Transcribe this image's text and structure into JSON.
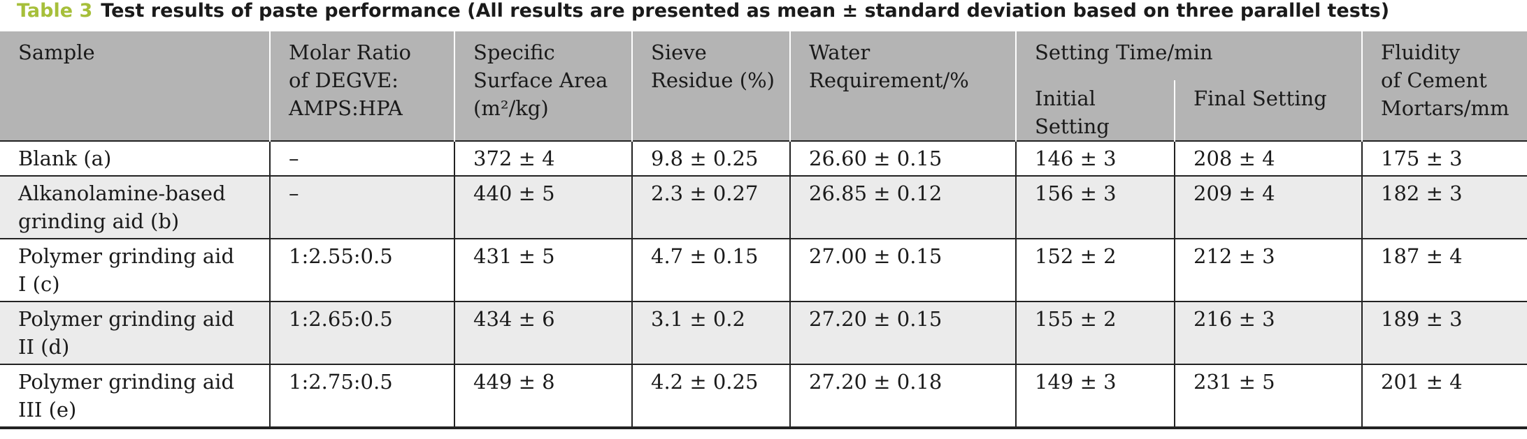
{
  "caption": {
    "label": "Table 3",
    "text": "Test results of paste performance (All results are presented as mean ± standard deviation based on three parallel tests)"
  },
  "headers": {
    "sample": "Sample",
    "molar_ratio": [
      "Molar Ratio",
      "of DEGVE:",
      "AMPS:HPA"
    ],
    "specific_surface_area": [
      "Specific",
      "Surface Area",
      "(m²/kg)"
    ],
    "sieve_residue": [
      "Sieve",
      "Residue (%)"
    ],
    "water_requirement": [
      "Water",
      "Requirement/%"
    ],
    "setting_time": "Setting Time/min",
    "initial_setting": [
      "Initial",
      "Setting"
    ],
    "final_setting": "Final Setting",
    "fluidity": [
      "Fluidity",
      "of Cement",
      "Mortars/mm"
    ]
  },
  "rows": [
    {
      "sample": [
        "Blank (a)"
      ],
      "molar_ratio": "–",
      "ssa": "372 ± 4",
      "sieve": "9.8 ± 0.25",
      "water": "26.60 ± 0.15",
      "initial": "146 ± 3",
      "final": "208 ± 4",
      "fluidity": "175 ± 3"
    },
    {
      "sample": [
        "Alkanolamine-based",
        "grinding aid (b)"
      ],
      "molar_ratio": "–",
      "ssa": "440 ± 5",
      "sieve": "2.3 ± 0.27",
      "water": "26.85 ± 0.12",
      "initial": "156 ± 3",
      "final": "209 ± 4",
      "fluidity": "182 ± 3"
    },
    {
      "sample": [
        "Polymer grinding aid",
        "I (c)"
      ],
      "molar_ratio": "1:2.55:0.5",
      "ssa": "431 ± 5",
      "sieve": "4.7 ± 0.15",
      "water": "27.00 ± 0.15",
      "initial": "152 ± 2",
      "final": "212 ± 3",
      "fluidity": "187 ± 4"
    },
    {
      "sample": [
        "Polymer grinding aid",
        "II (d)"
      ],
      "molar_ratio": "1:2.65:0.5",
      "ssa": "434 ± 6",
      "sieve": "3.1 ± 0.2",
      "water": "27.20 ± 0.15",
      "initial": "155 ± 2",
      "final": "216 ± 3",
      "fluidity": "189 ± 3"
    },
    {
      "sample": [
        "Polymer grinding aid",
        "III (e)"
      ],
      "molar_ratio": "1:2.75:0.5",
      "ssa": "449 ± 8",
      "sieve": "4.2 ± 0.25",
      "water": "27.20 ± 0.18",
      "initial": "149 ± 3",
      "final": "231 ± 5",
      "fluidity": "201 ± 4"
    }
  ]
}
